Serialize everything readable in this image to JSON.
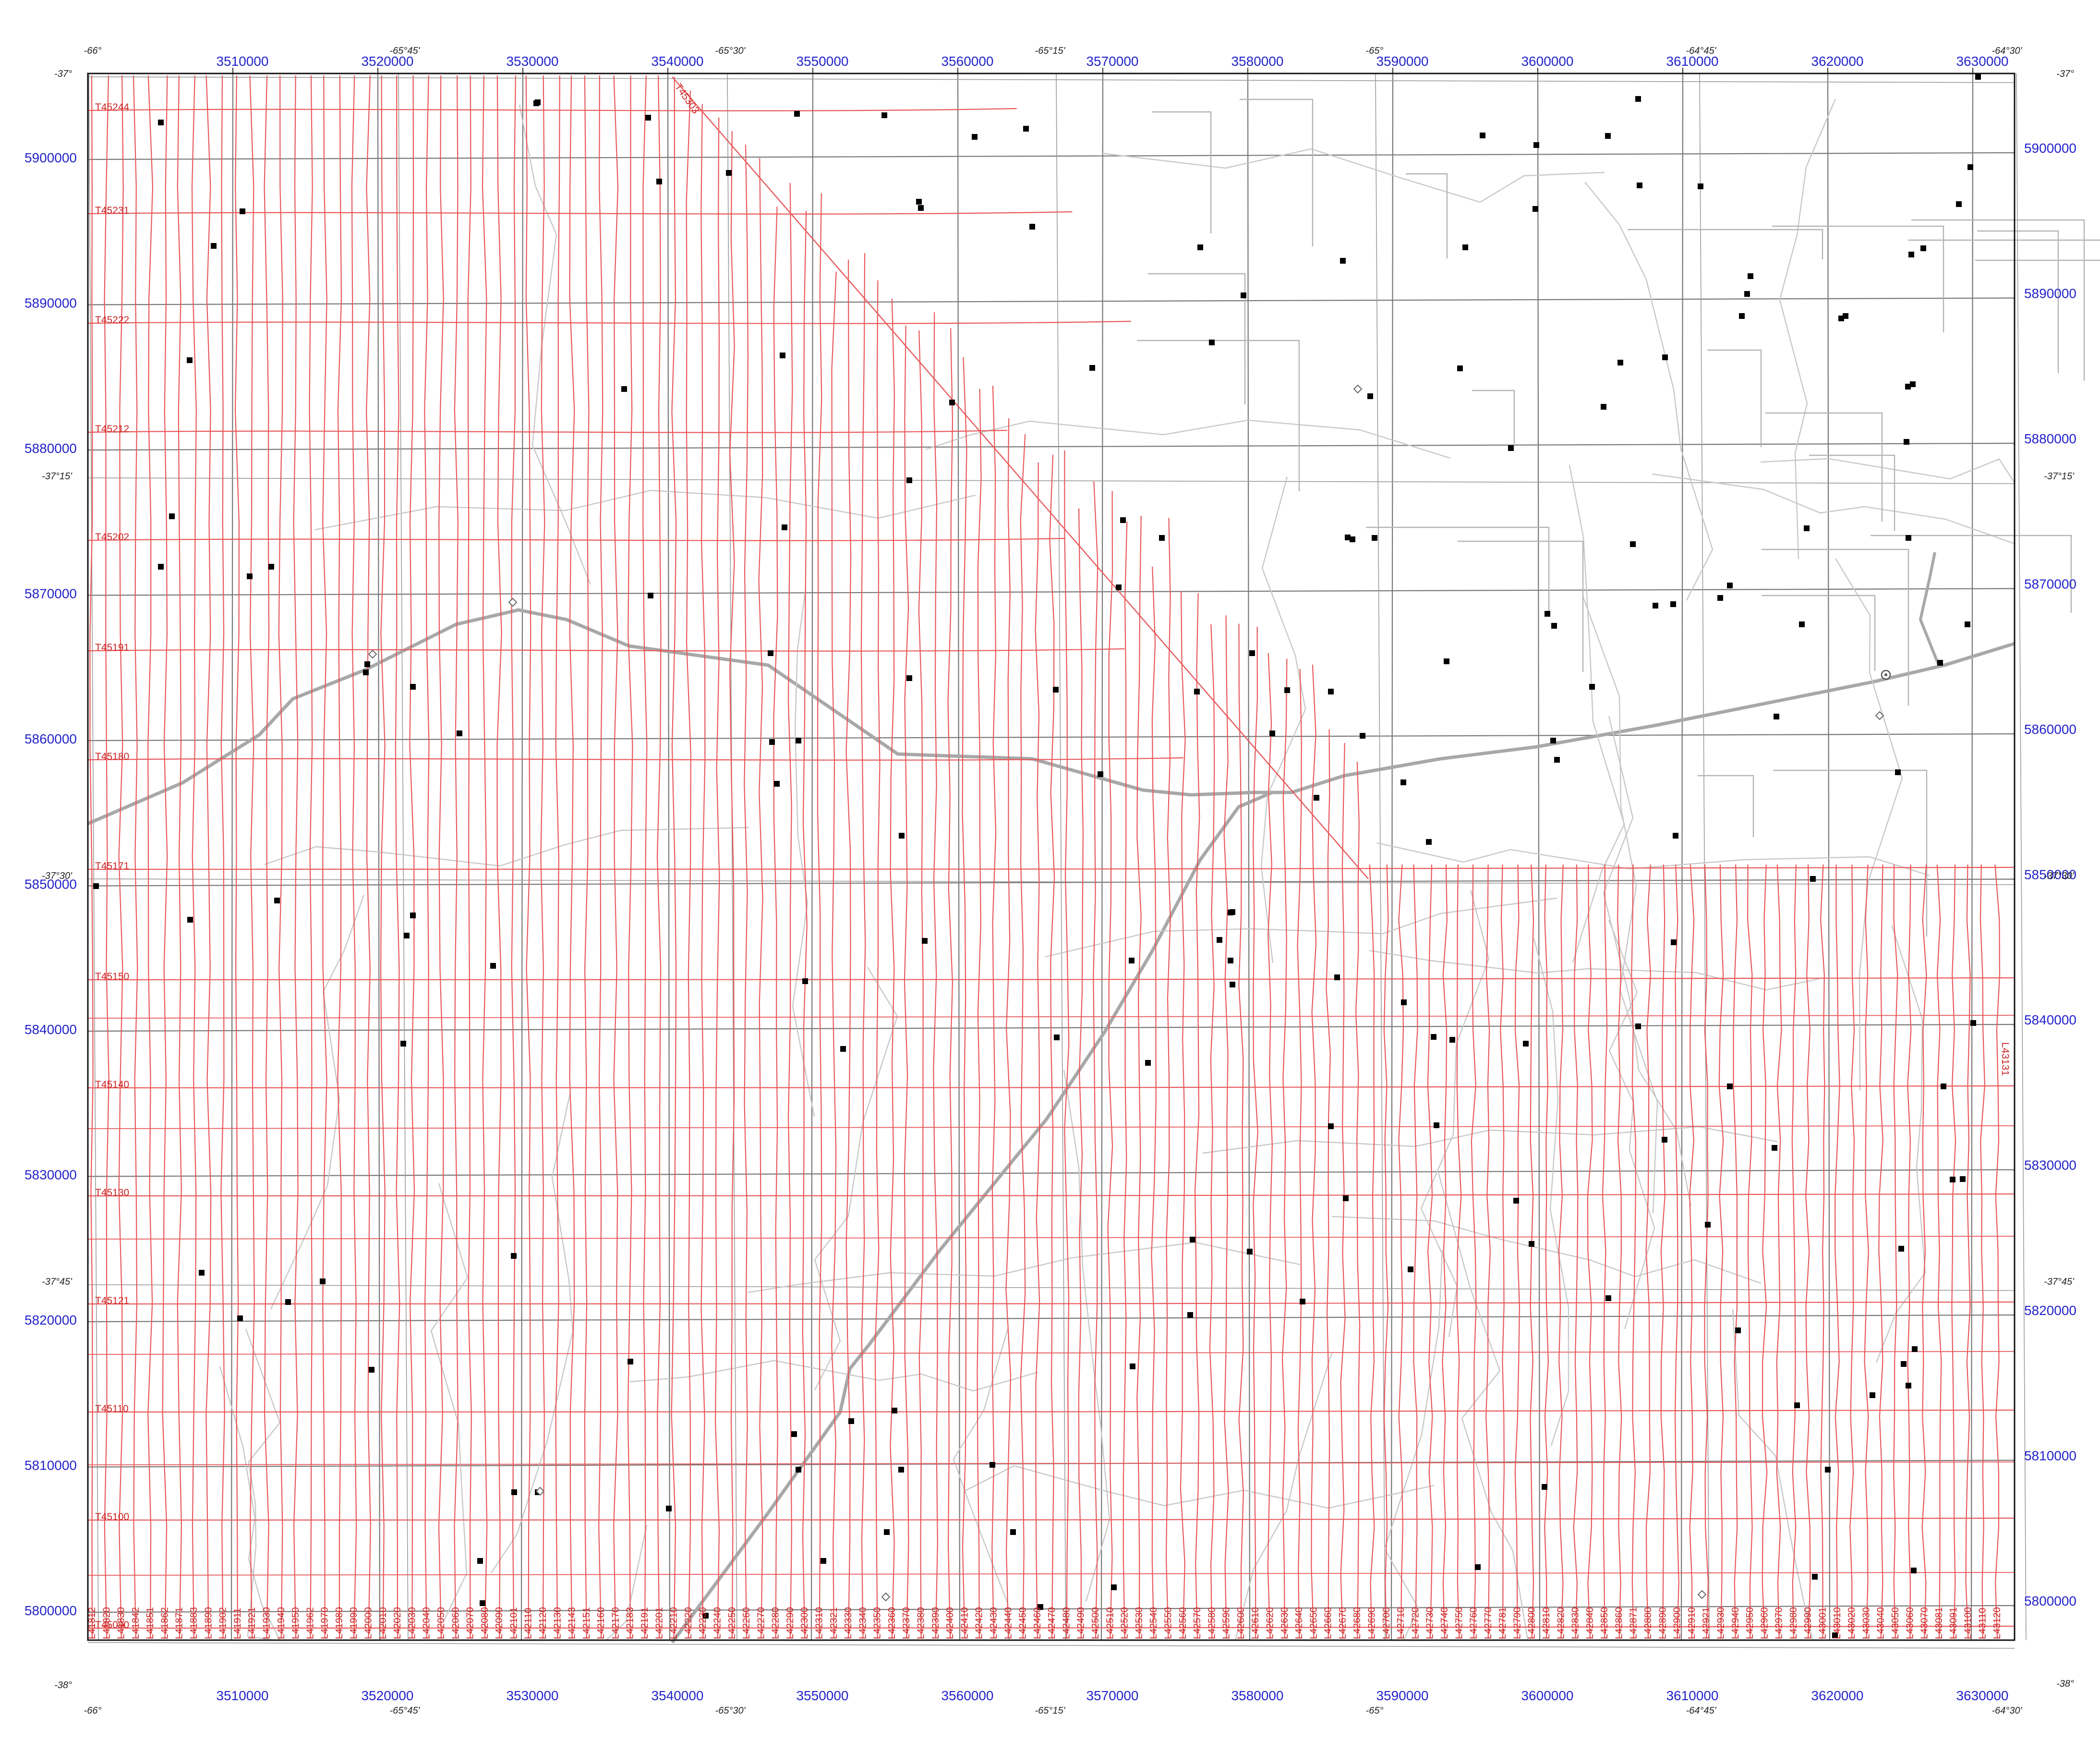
{
  "map": {
    "easting_ticks": [
      "3510000",
      "3520000",
      "3530000",
      "3540000",
      "3550000",
      "3560000",
      "3570000",
      "3580000",
      "3590000",
      "3600000",
      "3610000",
      "3620000",
      "3630000"
    ],
    "northing_ticks": [
      "5900000",
      "5890000",
      "5880000",
      "5870000",
      "5860000",
      "5850000",
      "5840000",
      "5830000",
      "5820000",
      "5810000",
      "5800000"
    ],
    "longitude_labels": [
      "-66°",
      "-65°45'",
      "-65°30'",
      "-65°15'",
      "-65°",
      "-64°45'",
      "-64°30'"
    ],
    "latitude_labels": [
      "-37°",
      "-37°15'",
      "-37°30'",
      "-37°45'",
      "-38°"
    ],
    "tie_lines": [
      "T45244",
      "T45231",
      "T45222",
      "T45212",
      "T45202",
      "T45191",
      "T45180",
      "T45171",
      "T45150",
      "T45140",
      "T45130",
      "T45121",
      "T45110",
      "T45100",
      "T45090"
    ],
    "diagonal_tie_line": "T45303",
    "right_tie_label": "L43131",
    "flight_lines": [
      "L41812",
      "L41820",
      "L41830",
      "L41842",
      "L41851",
      "L41862",
      "L41871",
      "L41883",
      "L41890",
      "L41902",
      "L41911",
      "L41921",
      "L41930",
      "L41940",
      "L41950",
      "L41962",
      "L41970",
      "L41980",
      "L41990",
      "L42000",
      "L42010",
      "L42020",
      "L42030",
      "L42040",
      "L42050",
      "L42060",
      "L42070",
      "L42080",
      "L42090",
      "L42101",
      "L42110",
      "L42120",
      "L42130",
      "L42143",
      "L42151",
      "L42160",
      "L42170",
      "L42183",
      "L42191",
      "L42201",
      "L42210",
      "L42220",
      "L42230",
      "L42240",
      "L42250",
      "L42260",
      "L42270",
      "L42280",
      "L42290",
      "L42300",
      "L42310",
      "L42321",
      "L42330",
      "L42340",
      "L42350",
      "L42360",
      "L42370",
      "L42380",
      "L42390",
      "L42400",
      "L42410",
      "L42420",
      "L42430",
      "L42440",
      "L42450",
      "L42460",
      "L42470",
      "L42480",
      "L42490",
      "L42500",
      "L42510",
      "L42520",
      "L42530",
      "L42540",
      "L42550",
      "L42560",
      "L42570",
      "L42580",
      "L42590",
      "L42600",
      "L42610",
      "L42620",
      "L42630",
      "L42640",
      "L42650",
      "L42660",
      "L42670",
      "L42680",
      "L42690",
      "L42700",
      "L42710",
      "L42720",
      "L42730",
      "L42740",
      "L42750",
      "L42760",
      "L42770",
      "L42781",
      "L42790",
      "L42800",
      "L42810",
      "L42820",
      "L42830",
      "L42840",
      "L42850",
      "L42860",
      "L42871",
      "L42880",
      "L42890",
      "L42900",
      "L42910",
      "L42921",
      "L42930",
      "L42940",
      "L42950",
      "L42960",
      "L42970",
      "L42980",
      "L42990",
      "L43001",
      "L43010",
      "L43020",
      "L43030",
      "L43040",
      "L43050",
      "L43060",
      "L43070",
      "L43081",
      "L43091",
      "L43100",
      "L43110",
      "L43120"
    ],
    "colors": {
      "flight_line": "#e8585a",
      "grid_line": "#777777",
      "road_major": "#a8a8a8",
      "road_minor": "#c8c8c8",
      "axis_text": "#2222cc",
      "tie_text": "#cc2222",
      "marker": "#000000"
    },
    "feature_icons": [
      "square-marker-icon",
      "diamond-marker-icon",
      "target-marker-icon"
    ]
  }
}
